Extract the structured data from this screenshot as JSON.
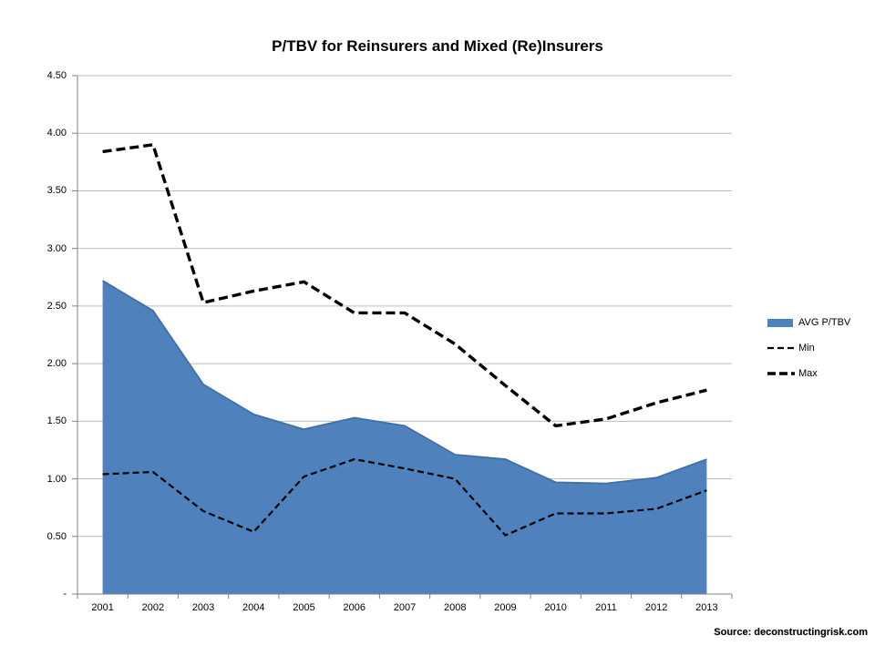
{
  "title": "P/TBV for Reinsurers and Mixed (Re)Insurers",
  "source": "Source: deconstructingrisk.com",
  "colors": {
    "area_fill": "#4F81BD",
    "area_edge": "#3F6FA8",
    "line_color": "#000000",
    "gridline": "#BDBDBD",
    "axis": "#808080",
    "text": "#000000"
  },
  "chart_data": {
    "type": "area",
    "title": "P/TBV for Reinsurers and Mixed (Re)Insurers",
    "categories": [
      "2001",
      "2002",
      "2003",
      "2004",
      "2005",
      "2006",
      "2007",
      "2008",
      "2009",
      "2010",
      "2011",
      "2012",
      "2013"
    ],
    "series": [
      {
        "name": "AVG P/TBV",
        "style": "area",
        "values": [
          2.72,
          2.46,
          1.82,
          1.56,
          1.43,
          1.53,
          1.46,
          1.21,
          1.17,
          0.97,
          0.96,
          1.01,
          1.17
        ]
      },
      {
        "name": "Min",
        "style": "dashed-thin",
        "values": [
          1.04,
          1.06,
          0.72,
          0.54,
          1.02,
          1.17,
          1.09,
          1.0,
          0.51,
          0.7,
          0.7,
          0.74,
          0.9
        ]
      },
      {
        "name": "Max",
        "style": "dashed-thick",
        "values": [
          3.84,
          3.9,
          2.53,
          2.63,
          2.71,
          2.44,
          2.44,
          2.17,
          1.81,
          1.46,
          1.52,
          1.66,
          1.77
        ]
      }
    ],
    "xlabel": "",
    "ylabel": "",
    "ylim": [
      0,
      4.5
    ],
    "ytick_step": 0.5,
    "ytick_labels_bottom_to_top": [
      "-",
      "0.50",
      "1.00",
      "1.50",
      "2.00",
      "2.50",
      "3.00",
      "3.50",
      "4.00",
      "4.50"
    ],
    "grid": true,
    "legend_position": "right"
  }
}
